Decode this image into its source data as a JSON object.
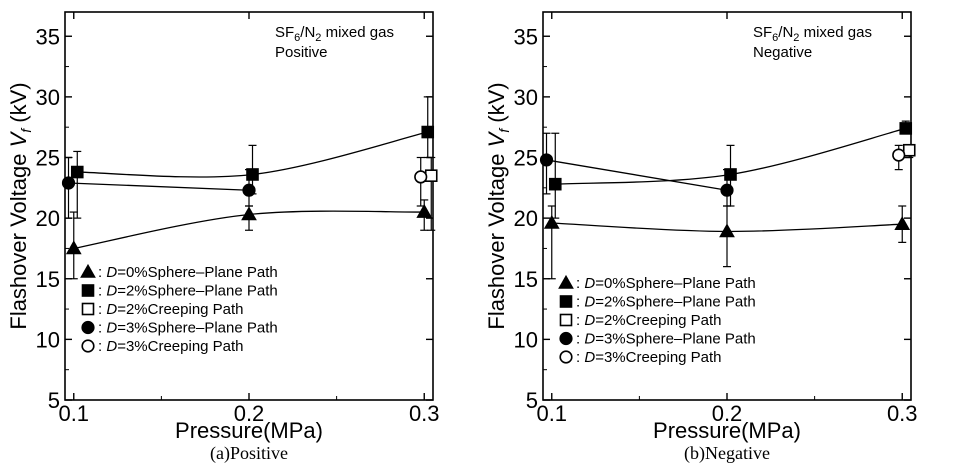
{
  "chart_data": [
    {
      "type": "line",
      "caption": "(a)Positive",
      "xlabel": "Pressure(MPa)",
      "ylabel_prefix": "Flashover Voltage ",
      "ylabel_var": "V",
      "ylabel_sub": "f",
      "ylabel_unit": " (kV)",
      "annotation": {
        "line1_prefix": "SF",
        "sub1": "6",
        "mid": "/N",
        "sub2": "2",
        "line1_suffix": " mixed gas",
        "line2": "Positive"
      },
      "xlim": [
        0.095,
        0.305
      ],
      "ylim": [
        5,
        37
      ],
      "x_ticks": [
        0.1,
        0.2,
        0.3
      ],
      "x_tick_labels": [
        "0.1",
        "0.2",
        "0.3"
      ],
      "y_ticks": [
        5,
        10,
        15,
        20,
        25,
        30,
        35
      ],
      "y_tick_labels": [
        "5",
        "10",
        "15",
        "20",
        "25",
        "30",
        "35"
      ],
      "legend_position": "lower-left",
      "series": [
        {
          "marker": "triangle",
          "fill": "#000000",
          "legend_pre": ": ",
          "legend_var": "D",
          "legend_post": "=0%Sphere–Plane Path",
          "x": [
            0.1,
            0.2,
            0.3
          ],
          "y": [
            17.5,
            20.3,
            20.5
          ],
          "err_lo": [
            15.0,
            19.0,
            19.0
          ],
          "err_hi": [
            20.5,
            21.0,
            21.5
          ],
          "dx": [
            0,
            0,
            0
          ]
        },
        {
          "marker": "square",
          "fill": "#000000",
          "legend_pre": ": ",
          "legend_var": "D",
          "legend_post": "=2%Sphere–Plane Path",
          "x": [
            0.1,
            0.2,
            0.3
          ],
          "y": [
            23.8,
            23.6,
            27.1
          ],
          "err_lo": [
            20.0,
            22.0,
            25.0
          ],
          "err_hi": [
            25.5,
            26.0,
            30.0
          ],
          "dx": [
            0.002,
            0.002,
            0.002
          ]
        },
        {
          "marker": "square",
          "fill": "#ffffff",
          "legend_pre": ": ",
          "legend_var": "D",
          "legend_post": "=2%Creeping Path",
          "x": [
            0.3
          ],
          "y": [
            23.5
          ],
          "err_lo": [
            19.0
          ],
          "err_hi": [
            25.0
          ],
          "dx": [
            0.004
          ]
        },
        {
          "marker": "circle",
          "fill": "#000000",
          "legend_pre": ": ",
          "legend_var": "D",
          "legend_post": "=3%Sphere–Plane Path",
          "x": [
            0.1,
            0.2
          ],
          "y": [
            22.9,
            22.3
          ],
          "err_lo": [
            20.0,
            21.0
          ],
          "err_hi": [
            25.0,
            24.0
          ],
          "dx": [
            -0.003,
            0
          ]
        },
        {
          "marker": "circle",
          "fill": "#ffffff",
          "legend_pre": ": ",
          "legend_var": "D",
          "legend_post": "=3%Creeping Path",
          "x": [
            0.3
          ],
          "y": [
            23.4
          ],
          "err_lo": [
            21.0
          ],
          "err_hi": [
            25.0
          ],
          "dx": [
            -0.002
          ]
        }
      ]
    },
    {
      "type": "line",
      "caption": "(b)Negative",
      "xlabel": "Pressure(MPa)",
      "ylabel_prefix": "Flashover Voltage ",
      "ylabel_var": "V",
      "ylabel_sub": "f",
      "ylabel_unit": " (kV)",
      "annotation": {
        "line1_prefix": "SF",
        "sub1": "6",
        "mid": "/N",
        "sub2": "2",
        "line1_suffix": " mixed gas",
        "line2": "Negative"
      },
      "xlim": [
        0.095,
        0.305
      ],
      "ylim": [
        5,
        37
      ],
      "x_ticks": [
        0.1,
        0.2,
        0.3
      ],
      "x_tick_labels": [
        "0.1",
        "0.2",
        "0.3"
      ],
      "y_ticks": [
        5,
        10,
        15,
        20,
        25,
        30,
        35
      ],
      "y_tick_labels": [
        "5",
        "10",
        "15",
        "20",
        "25",
        "30",
        "35"
      ],
      "legend_position": "lower-left",
      "series": [
        {
          "marker": "triangle",
          "fill": "#000000",
          "legend_pre": ": ",
          "legend_var": "D",
          "legend_post": "=0%Sphere–Plane Path",
          "x": [
            0.1,
            0.2,
            0.3
          ],
          "y": [
            19.6,
            18.9,
            19.5
          ],
          "err_lo": [
            15.0,
            16.0,
            18.0
          ],
          "err_hi": [
            21.0,
            21.0,
            21.0
          ],
          "dx": [
            0,
            0,
            0
          ]
        },
        {
          "marker": "square",
          "fill": "#000000",
          "legend_pre": ": ",
          "legend_var": "D",
          "legend_post": "=2%Sphere–Plane Path",
          "x": [
            0.1,
            0.2,
            0.3
          ],
          "y": [
            22.8,
            23.6,
            27.4
          ],
          "err_lo": [
            20.0,
            21.0,
            27.0
          ],
          "err_hi": [
            27.0,
            26.0,
            28.0
          ],
          "dx": [
            0.002,
            0.002,
            0.002
          ]
        },
        {
          "marker": "square",
          "fill": "#ffffff",
          "legend_pre": ": ",
          "legend_var": "D",
          "legend_post": "=2%Creeping Path",
          "x": [
            0.3
          ],
          "y": [
            25.6
          ],
          "err_lo": [
            25.0
          ],
          "err_hi": [
            26.0
          ],
          "dx": [
            0.004
          ]
        },
        {
          "marker": "circle",
          "fill": "#000000",
          "legend_pre": ": ",
          "legend_var": "D",
          "legend_post": "=3%Sphere–Plane Path",
          "x": [
            0.1,
            0.2
          ],
          "y": [
            24.8,
            22.3
          ],
          "err_lo": [
            22.0,
            21.0
          ],
          "err_hi": [
            27.0,
            24.0
          ],
          "dx": [
            -0.003,
            0
          ]
        },
        {
          "marker": "circle",
          "fill": "#ffffff",
          "legend_pre": ": ",
          "legend_var": "D",
          "legend_post": "=3%Creeping Path",
          "x": [
            0.3
          ],
          "y": [
            25.2
          ],
          "err_lo": [
            24.0
          ],
          "err_hi": [
            26.0
          ],
          "dx": [
            -0.002
          ]
        }
      ]
    }
  ]
}
